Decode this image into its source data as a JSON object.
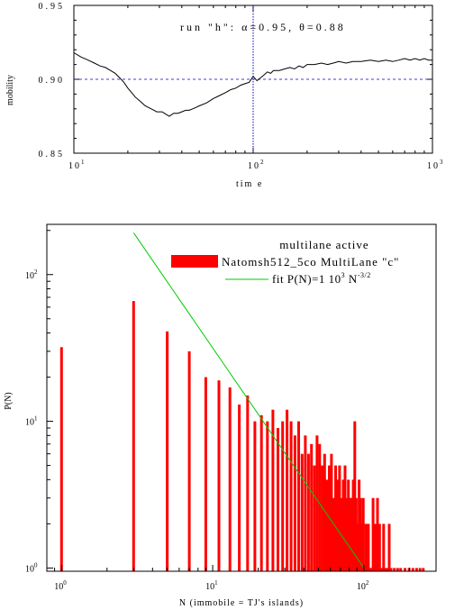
{
  "chart_data": [
    {
      "type": "line",
      "title": "",
      "xlabel": "tim e",
      "ylabel": "mobility",
      "x_scale": "log",
      "xlim": [
        10,
        1000
      ],
      "ylim": [
        0.85,
        0.95
      ],
      "x_tick_labels": [
        {
          "base": "10",
          "exp": "1"
        },
        {
          "base": "10",
          "exp": "2"
        },
        {
          "base": "10",
          "exp": "3"
        }
      ],
      "y_tick_labels": [
        "0.95",
        "0.90",
        "0.85"
      ],
      "annotation": "run \"h\":  α=0.95,  θ=0.88",
      "reference_line_y": 0.9,
      "reference_line_x": 100,
      "color": "#000000",
      "ref_color": "#0000cc",
      "series": [
        {
          "x": [
            10,
            11,
            12,
            13,
            14,
            15,
            16,
            17,
            18,
            19,
            20,
            21,
            22,
            23,
            24,
            25,
            26,
            27,
            28,
            29,
            30,
            31,
            32,
            33,
            34,
            35,
            36,
            38,
            40,
            42,
            44,
            46,
            48,
            50,
            55,
            60,
            65,
            70,
            75,
            80,
            85,
            90,
            95,
            100,
            105,
            110,
            115,
            120,
            125,
            130,
            140,
            150,
            160,
            170,
            180,
            190,
            200,
            220,
            240,
            260,
            280,
            300,
            330,
            360,
            400,
            450,
            500,
            550,
            600,
            650,
            700,
            750,
            800,
            850,
            900,
            950,
            1000
          ],
          "y": [
            0.918,
            0.915,
            0.913,
            0.911,
            0.909,
            0.908,
            0.906,
            0.904,
            0.901,
            0.898,
            0.894,
            0.891,
            0.888,
            0.886,
            0.884,
            0.882,
            0.881,
            0.88,
            0.879,
            0.878,
            0.878,
            0.878,
            0.877,
            0.876,
            0.875,
            0.876,
            0.877,
            0.877,
            0.878,
            0.879,
            0.879,
            0.88,
            0.881,
            0.882,
            0.884,
            0.887,
            0.889,
            0.891,
            0.893,
            0.894,
            0.896,
            0.897,
            0.898,
            0.902,
            0.899,
            0.901,
            0.903,
            0.905,
            0.904,
            0.906,
            0.906,
            0.907,
            0.908,
            0.907,
            0.909,
            0.908,
            0.91,
            0.91,
            0.911,
            0.91,
            0.911,
            0.912,
            0.911,
            0.912,
            0.912,
            0.913,
            0.912,
            0.913,
            0.912,
            0.913,
            0.914,
            0.913,
            0.914,
            0.913,
            0.914,
            0.913,
            0.913
          ]
        }
      ]
    },
    {
      "type": "bar",
      "title": "",
      "xlabel": "N (immobile = TJ's islands)",
      "ylabel": "P(N)",
      "x_scale": "log",
      "y_scale": "log",
      "xlim": [
        0.8,
        300
      ],
      "ylim": [
        0.95,
        220
      ],
      "x_tick_labels": [
        {
          "base": "10",
          "exp": "0",
          "value": 1
        },
        {
          "base": "10",
          "exp": "1",
          "value": 10
        },
        {
          "base": "10",
          "exp": "2",
          "value": 100
        }
      ],
      "y_tick_labels": [
        {
          "base": "10",
          "exp": "2",
          "value": 100
        },
        {
          "base": "10",
          "exp": "1",
          "value": 10
        },
        {
          "base": "10",
          "exp": "0",
          "value": 1
        }
      ],
      "legend": {
        "placement": "top-right",
        "title": "multilane active",
        "entries": [
          {
            "label": "Natomsh512_5co MultiLane \"c\"",
            "color": "#ff0000",
            "kind": "bar"
          },
          {
            "label": "fit P(N)=1 10",
            "sup1": "3",
            "label_mid": " N",
            "sup2": "-3/2",
            "color": "#00cc00",
            "kind": "line"
          }
        ]
      },
      "fit": {
        "coefficient": 1000,
        "exponent": -1.5,
        "color": "#00cc00",
        "x_range": [
          3,
          100
        ]
      },
      "bar_color": "#ff0000",
      "bars": {
        "x": [
          1,
          3,
          5,
          7,
          9,
          11,
          13,
          15,
          17,
          19,
          21,
          23,
          25,
          27,
          29,
          31,
          33,
          35,
          37,
          39,
          41,
          43,
          45,
          47,
          49,
          51,
          53,
          55,
          57,
          59,
          61,
          63,
          65,
          67,
          69,
          71,
          73,
          75,
          77,
          79,
          81,
          83,
          85,
          87,
          89,
          91,
          93,
          95,
          97,
          99,
          103,
          107,
          111,
          115,
          119,
          123,
          127,
          131,
          135,
          139,
          143,
          147,
          151,
          159,
          167,
          175,
          187,
          199,
          211,
          223,
          235,
          247
        ],
        "values": [
          32,
          66,
          41,
          30,
          20,
          19,
          17,
          13,
          15,
          10,
          11,
          10,
          12,
          9,
          10,
          12,
          10,
          8,
          10,
          6,
          8,
          6,
          7,
          5,
          8,
          7,
          5,
          6,
          4,
          5,
          6,
          3,
          5,
          4,
          5,
          3,
          4,
          5,
          3,
          4,
          3,
          3,
          4,
          10,
          3,
          2,
          4,
          3,
          2,
          3,
          2,
          2,
          1,
          3,
          2,
          3,
          2,
          1,
          2,
          1,
          1,
          2,
          1,
          1,
          1,
          1,
          1,
          1,
          1,
          1,
          1,
          1
        ]
      }
    }
  ]
}
